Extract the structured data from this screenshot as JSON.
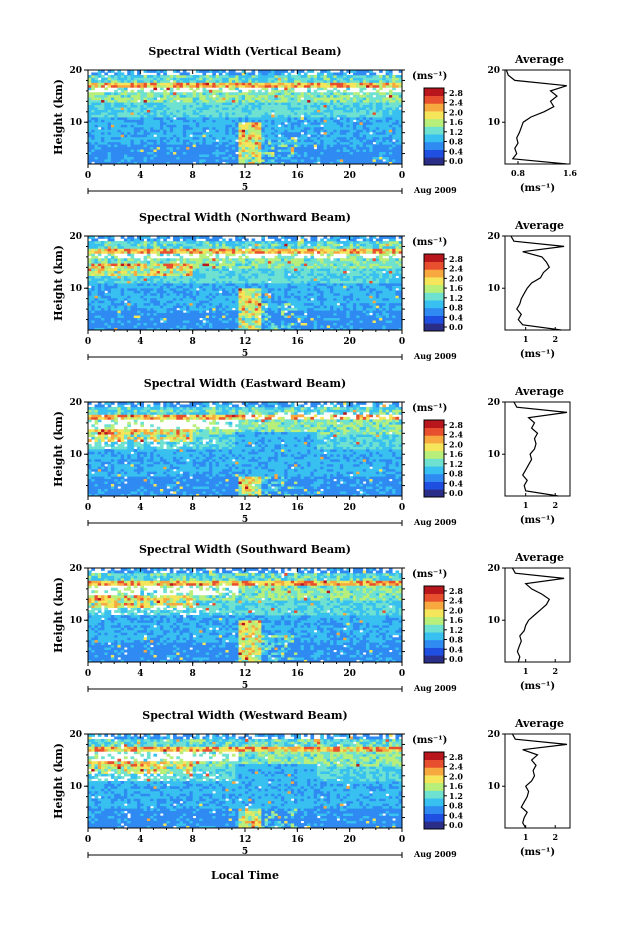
{
  "figure": {
    "xlabel": "Local Time",
    "date_label": "Aug 2009",
    "day_label": "5"
  },
  "colormap": [
    "#2b2e86",
    "#1f4fe0",
    "#2f8af2",
    "#38c0f0",
    "#6fe1d0",
    "#b8ee7a",
    "#f4e55a",
    "#f7a83f",
    "#e84f2e",
    "#b8161c"
  ],
  "chart_data": [
    {
      "type": "heatmap",
      "title": "Spectral Width (Vertical Beam)",
      "ylabel": "Height (km)",
      "xlim": [
        0,
        24
      ],
      "ylim": [
        2,
        20
      ],
      "xticks": [
        "0",
        "4",
        "8",
        "12",
        "16",
        "20",
        "0"
      ],
      "yticks": [
        "10",
        "20"
      ],
      "colorbar": {
        "unit": "(ms⁻¹)",
        "range": [
          0,
          3
        ],
        "ticks": [
          "0.0",
          "0.4",
          "0.8",
          "1.2",
          "1.6",
          "2.0",
          "2.4",
          "2.8"
        ]
      },
      "average": {
        "title": "Average",
        "unit": "(ms⁻¹)",
        "xlim": [
          0.6,
          1.6
        ],
        "xticks": [
          "0.8",
          "1.6"
        ],
        "yticks": [
          "10",
          "20"
        ],
        "heights": [
          2,
          3,
          4,
          5,
          6,
          7,
          8,
          9,
          10,
          11,
          12,
          13,
          14,
          15,
          16,
          17,
          18,
          19,
          20
        ],
        "values": [
          1.55,
          0.72,
          0.78,
          0.75,
          0.8,
          0.78,
          0.82,
          0.85,
          0.88,
          1.0,
          1.2,
          1.35,
          1.3,
          1.4,
          1.3,
          1.55,
          0.75,
          0.65,
          0.62
        ]
      }
    },
    {
      "type": "heatmap",
      "title": "Spectral Width (Northward Beam)",
      "ylabel": "Height (km)",
      "xlim": [
        0,
        24
      ],
      "ylim": [
        2,
        20
      ],
      "xticks": [
        "0",
        "4",
        "8",
        "12",
        "16",
        "20",
        "0"
      ],
      "yticks": [
        "10",
        "20"
      ],
      "colorbar": {
        "unit": "(ms⁻¹)",
        "range": [
          0,
          3
        ],
        "ticks": [
          "0.0",
          "0.4",
          "0.8",
          "1.2",
          "1.6",
          "2.0",
          "2.4",
          "2.8"
        ]
      },
      "average": {
        "title": "Average",
        "unit": "(ms⁻¹)",
        "xlim": [
          0.3,
          2.5
        ],
        "xticks": [
          "1",
          "2"
        ],
        "yticks": [
          "10",
          "20"
        ],
        "heights": [
          2,
          3,
          4,
          5,
          6,
          7,
          8,
          9,
          10,
          11,
          12,
          13,
          14,
          15,
          16,
          17,
          18,
          19,
          20
        ],
        "values": [
          2.2,
          0.9,
          0.75,
          0.85,
          0.7,
          0.8,
          0.85,
          0.95,
          1.05,
          1.2,
          1.5,
          1.6,
          1.8,
          1.7,
          1.55,
          0.9,
          2.3,
          0.6,
          0.5
        ]
      }
    },
    {
      "type": "heatmap",
      "title": "Spectral Width (Eastward Beam)",
      "ylabel": "Height (km)",
      "xlim": [
        0,
        24
      ],
      "ylim": [
        2,
        20
      ],
      "xticks": [
        "0",
        "4",
        "8",
        "12",
        "16",
        "20",
        "0"
      ],
      "yticks": [
        "10",
        "20"
      ],
      "colorbar": {
        "unit": "(ms⁻¹)",
        "range": [
          0,
          3
        ],
        "ticks": [
          "0.0",
          "0.4",
          "0.8",
          "1.2",
          "1.6",
          "2.0",
          "2.4",
          "2.8"
        ]
      },
      "average": {
        "title": "Average",
        "unit": "(ms⁻¹)",
        "xlim": [
          0.3,
          2.5
        ],
        "xticks": [
          "1",
          "2"
        ],
        "yticks": [
          "10",
          "20"
        ],
        "heights": [
          2,
          3,
          4,
          5,
          6,
          7,
          8,
          9,
          10,
          11,
          12,
          13,
          14,
          15,
          16,
          17,
          18,
          19,
          20
        ],
        "values": [
          2.1,
          1.0,
          0.95,
          1.05,
          0.9,
          1.0,
          1.1,
          1.2,
          1.15,
          1.3,
          1.35,
          1.3,
          1.4,
          1.2,
          1.3,
          1.1,
          2.4,
          0.7,
          0.6
        ]
      }
    },
    {
      "type": "heatmap",
      "title": "Spectral Width (Southward Beam)",
      "ylabel": "Height (km)",
      "xlim": [
        0,
        24
      ],
      "ylim": [
        2,
        20
      ],
      "xticks": [
        "0",
        "4",
        "8",
        "12",
        "16",
        "20",
        "0"
      ],
      "yticks": [
        "10",
        "20"
      ],
      "colorbar": {
        "unit": "(ms⁻¹)",
        "range": [
          0,
          3
        ],
        "ticks": [
          "0.0",
          "0.4",
          "0.8",
          "1.2",
          "1.6",
          "2.0",
          "2.4",
          "2.8"
        ]
      },
      "average": {
        "title": "Average",
        "unit": "(ms⁻¹)",
        "xlim": [
          0.3,
          2.5
        ],
        "xticks": [
          "1",
          "2"
        ],
        "yticks": [
          "10",
          "20"
        ],
        "heights": [
          2,
          3,
          4,
          5,
          6,
          7,
          8,
          9,
          10,
          11,
          12,
          13,
          14,
          15,
          16,
          17,
          18,
          19,
          20
        ],
        "values": [
          0.75,
          0.8,
          0.72,
          0.78,
          0.85,
          0.8,
          0.95,
          1.0,
          1.1,
          1.3,
          1.5,
          1.7,
          1.8,
          1.55,
          1.2,
          1.0,
          2.3,
          0.65,
          0.55
        ]
      }
    },
    {
      "type": "heatmap",
      "title": "Spectral Width (Westward Beam)",
      "ylabel": "Height (km)",
      "xlim": [
        0,
        24
      ],
      "ylim": [
        2,
        20
      ],
      "xticks": [
        "0",
        "4",
        "8",
        "12",
        "16",
        "20",
        "0"
      ],
      "yticks": [
        "10",
        "20"
      ],
      "colorbar": {
        "unit": "(ms⁻¹)",
        "range": [
          0,
          3
        ],
        "ticks": [
          "0.0",
          "0.4",
          "0.8",
          "1.2",
          "1.6",
          "2.0",
          "2.4",
          "2.8"
        ]
      },
      "average": {
        "title": "Average",
        "unit": "(ms⁻¹)",
        "xlim": [
          0.3,
          2.5
        ],
        "xticks": [
          "1",
          "2"
        ],
        "yticks": [
          "10",
          "20"
        ],
        "heights": [
          2,
          3,
          4,
          5,
          6,
          7,
          8,
          9,
          10,
          11,
          12,
          13,
          14,
          15,
          16,
          17,
          18,
          19,
          20
        ],
        "values": [
          1.0,
          0.9,
          0.95,
          1.05,
          0.85,
          0.95,
          1.05,
          1.1,
          1.0,
          1.2,
          1.3,
          1.25,
          1.35,
          1.2,
          1.4,
          0.9,
          2.4,
          0.65,
          0.55
        ]
      }
    }
  ]
}
